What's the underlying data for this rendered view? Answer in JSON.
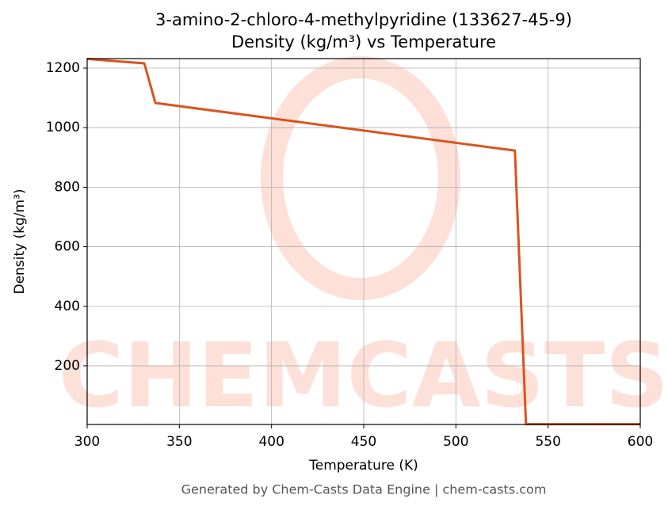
{
  "chart_data": {
    "type": "line",
    "title": "3-amino-2-chloro-4-methylpyridine (133627-45-9)",
    "subtitle": "Density (kg/m³) vs Temperature",
    "xlabel": "Temperature (K)",
    "ylabel": "Density (kg/m³)",
    "footer": "Generated by Chem-Casts Data Engine | chem-casts.com",
    "watermark": "CHEMCASTS",
    "x": [
      300,
      331,
      337,
      532,
      538,
      600
    ],
    "series": [
      {
        "name": "Density",
        "color": "#d9541e",
        "values": [
          1231,
          1216,
          1083,
          923,
          4,
          4
        ]
      }
    ],
    "xlim": [
      300,
      600
    ],
    "ylim": [
      3,
      1232
    ],
    "xticks": [
      300,
      350,
      400,
      450,
      500,
      550,
      600
    ],
    "yticks": [
      200,
      400,
      600,
      800,
      1000,
      1200
    ],
    "grid": true
  }
}
